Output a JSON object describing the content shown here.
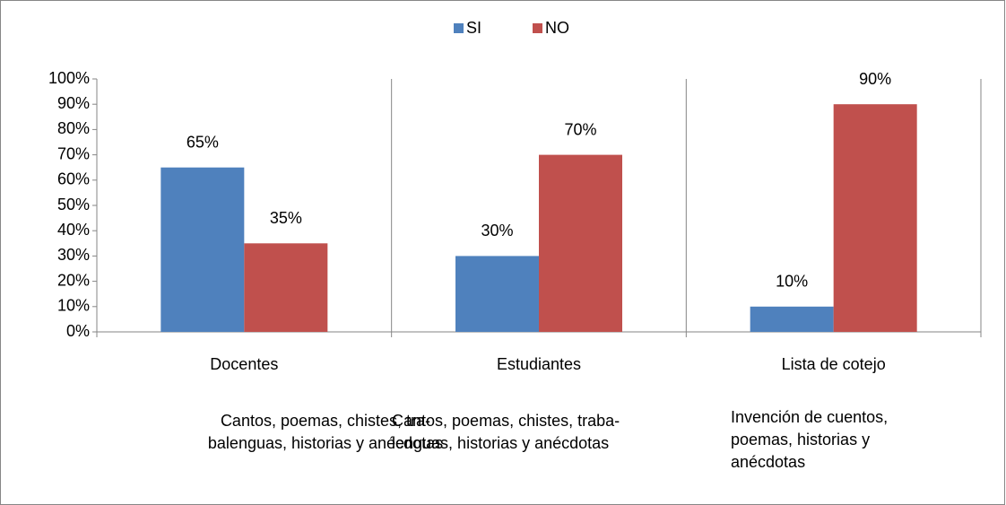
{
  "chart_data": {
    "type": "bar",
    "categories": [
      "Docentes",
      "Estudiantes",
      "Lista de cotejo"
    ],
    "series": [
      {
        "name": "SI",
        "color": "#4f81bd",
        "values": [
          65,
          30,
          10
        ],
        "value_labels": [
          "65%",
          "30%",
          "10%"
        ]
      },
      {
        "name": "NO",
        "color": "#c0504d",
        "values": [
          35,
          70,
          90
        ],
        "value_labels": [
          "35%",
          "70%",
          "90%"
        ]
      }
    ],
    "ylim": [
      0,
      100
    ],
    "yticks": [
      {
        "value": 0,
        "label": "0%"
      },
      {
        "value": 10,
        "label": "10%"
      },
      {
        "value": 20,
        "label": "20%"
      },
      {
        "value": 30,
        "label": "30%"
      },
      {
        "value": 40,
        "label": "40%"
      },
      {
        "value": 50,
        "label": "50%"
      },
      {
        "value": 60,
        "label": "60%"
      },
      {
        "value": 70,
        "label": "70%"
      },
      {
        "value": 80,
        "label": "80%"
      },
      {
        "value": 90,
        "label": "90%"
      },
      {
        "value": 100,
        "label": "100%"
      }
    ],
    "legend": "top",
    "xgrid": true,
    "annotations": [
      {
        "lines": [
          "Cantos, poemas, chistes, tra-",
          "balenguas, historias y anécdotas"
        ]
      },
      {
        "lines": [
          "Cantos, poemas, chistes, traba-",
          "lenguas, historias y anécdotas"
        ]
      },
      {
        "lines": [
          "Invención de cuentos,",
          "poemas, historias y",
          "anécdotas"
        ]
      }
    ]
  }
}
